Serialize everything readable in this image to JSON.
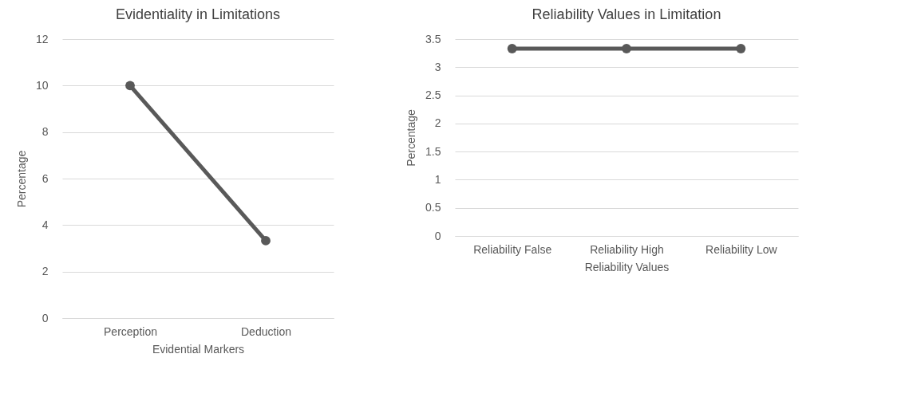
{
  "chart_data": [
    {
      "type": "line",
      "title": "Evidentiality in Limitations",
      "xlabel": "Evidential Markers",
      "ylabel": "Percentage",
      "categories": [
        "Perception",
        "Deduction"
      ],
      "series": [
        {
          "color": "#595959",
          "values": [
            10,
            3.33
          ]
        }
      ],
      "ylim": [
        0,
        12
      ],
      "yticks": [
        0,
        2,
        4,
        6,
        8,
        10,
        12
      ],
      "grid": "y",
      "legend": false,
      "marker": "circle",
      "line_style": "solid"
    },
    {
      "type": "line",
      "title": "Reliability Values in Limitation",
      "xlabel": "Reliability Values",
      "ylabel": "Percentage",
      "categories": [
        "Reliability False",
        "Reliability High",
        "Reliability Low"
      ],
      "series": [
        {
          "color": "#595959",
          "values": [
            3.33,
            3.33,
            3.33
          ]
        }
      ],
      "ylim": [
        0,
        3.5
      ],
      "yticks": [
        0,
        0.5,
        1,
        1.5,
        2,
        2.5,
        3,
        3.5
      ],
      "grid": "y",
      "legend": false,
      "marker": "circle",
      "line_style": "solid"
    }
  ]
}
